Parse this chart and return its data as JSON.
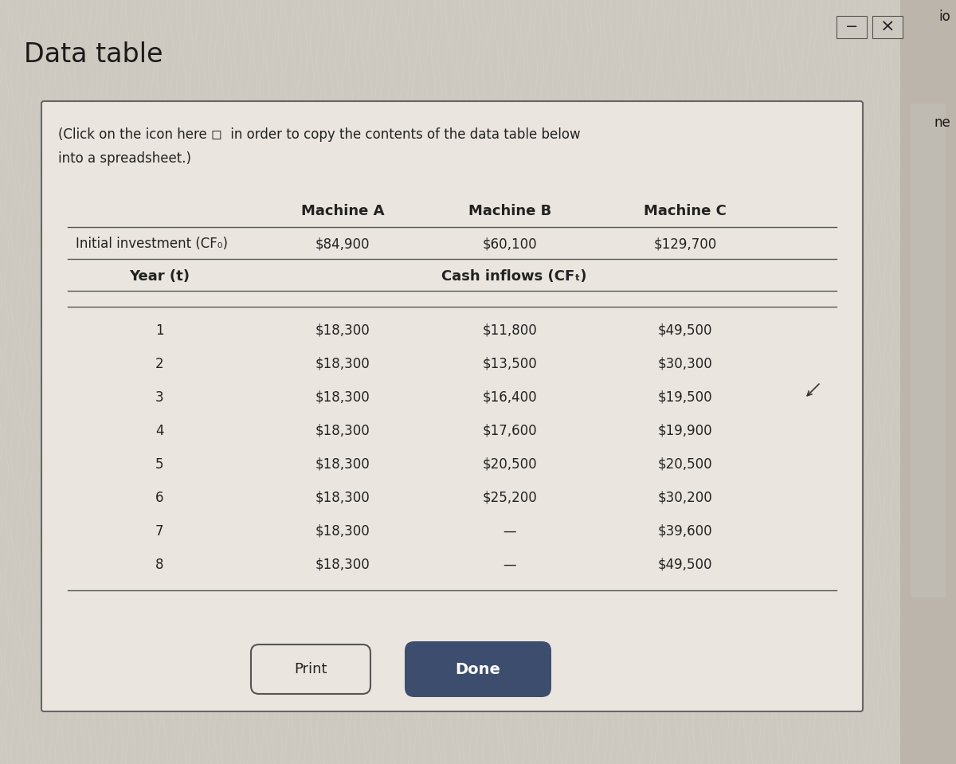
{
  "title": "Data table",
  "subtitle_line1": "(Click on the icon here ◻  in order to copy the contents of the data table below",
  "subtitle_line2": "into a spreadsheet.)",
  "col_headers": [
    "Machine A",
    "Machine B",
    "Machine C"
  ],
  "initial_investment_label": "Initial investment (CF₀)",
  "initial_investment_values": [
    "$84,900",
    "$60,100",
    "$129,700"
  ],
  "year_label": "Year (t)",
  "cash_inflows_label": "Cash inflows (CFₜ)",
  "years": [
    "1",
    "2",
    "3",
    "4",
    "5",
    "6",
    "7",
    "8"
  ],
  "machine_a": [
    "$18,300",
    "$18,300",
    "$18,300",
    "$18,300",
    "$18,300",
    "$18,300",
    "$18,300",
    "$18,300"
  ],
  "machine_b": [
    "$11,800",
    "$13,500",
    "$16,400",
    "$17,600",
    "$20,500",
    "$25,200",
    "—",
    "—"
  ],
  "machine_c": [
    "$49,500",
    "$30,300",
    "$19,500",
    "$19,900",
    "$20,500",
    "$30,200",
    "$39,600",
    "$49,500"
  ],
  "bg_color": "#cec9c0",
  "dialog_bg": "#eae6df",
  "border_color": "#888888",
  "text_color": "#222222",
  "title_color": "#1a1a1a",
  "done_btn_color": "#3d4d6e",
  "done_btn_text": "Done",
  "print_btn_text": "Print",
  "right_bar_color": "#bbb5ac",
  "top_bar_color": "#c8c3bc"
}
